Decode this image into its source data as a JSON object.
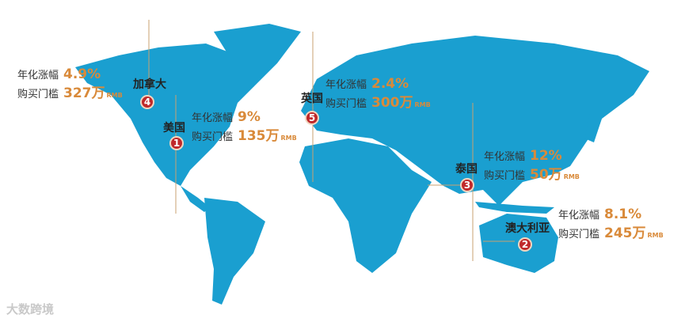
{
  "colors": {
    "land": "#1a9fd0",
    "accent": "#d98a3a",
    "marker": "#c0282a"
  },
  "labels": {
    "growth": "年化涨幅",
    "threshold": "购买门槛",
    "unit": "RMB"
  },
  "countries": [
    {
      "rank": "1",
      "name": "美国",
      "growth": "9%",
      "threshold": "135万"
    },
    {
      "rank": "2",
      "name": "澳大利亚",
      "growth": "8.1%",
      "threshold": "245万"
    },
    {
      "rank": "3",
      "name": "泰国",
      "growth": "12%",
      "threshold": "50万"
    },
    {
      "rank": "4",
      "name": "加拿大",
      "growth": "4.9%",
      "threshold": "327万"
    },
    {
      "rank": "5",
      "name": "英国",
      "growth": "2.4%",
      "threshold": "300万"
    }
  ],
  "watermark": "大数跨境"
}
